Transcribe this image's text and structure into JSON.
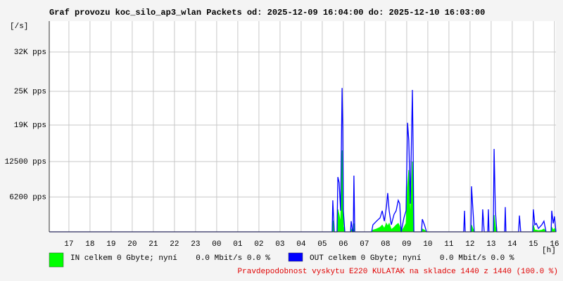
{
  "chart_data": {
    "type": "area-line",
    "title": "Graf provozu koc_silo_ap3_wlan Packets od: 2025-12-09 16:04:00 do: 2025-12-10 16:03:00",
    "y_label": "[/s]",
    "x_label": "[h]",
    "footer": "Pravdepodobnost vyskytu E220 KULATAK na skladce 1440 z 1440 (100.0 %)",
    "grid": true,
    "xlim": [
      0,
      24
    ],
    "ylim": [
      0,
      37500
    ],
    "yticks": [
      {
        "value": 6200,
        "label": "6200 pps"
      },
      {
        "value": 12500,
        "label": "12500 pps"
      },
      {
        "value": 19000,
        "label": "19K pps"
      },
      {
        "value": 25000,
        "label": "25K pps"
      },
      {
        "value": 32000,
        "label": "32K pps"
      }
    ],
    "xticks": [
      {
        "value": 0.93,
        "label": "17"
      },
      {
        "value": 1.93,
        "label": "18"
      },
      {
        "value": 2.93,
        "label": "19"
      },
      {
        "value": 3.93,
        "label": "20"
      },
      {
        "value": 4.93,
        "label": "21"
      },
      {
        "value": 5.93,
        "label": "22"
      },
      {
        "value": 6.93,
        "label": "23"
      },
      {
        "value": 7.93,
        "label": "00"
      },
      {
        "value": 8.93,
        "label": "01"
      },
      {
        "value": 9.93,
        "label": "02"
      },
      {
        "value": 10.93,
        "label": "03"
      },
      {
        "value": 11.93,
        "label": "04"
      },
      {
        "value": 12.93,
        "label": "05"
      },
      {
        "value": 13.93,
        "label": "06"
      },
      {
        "value": 14.93,
        "label": "07"
      },
      {
        "value": 15.93,
        "label": "08"
      },
      {
        "value": 16.93,
        "label": "09"
      },
      {
        "value": 17.93,
        "label": "10"
      },
      {
        "value": 18.93,
        "label": "11"
      },
      {
        "value": 19.93,
        "label": "12"
      },
      {
        "value": 20.93,
        "label": "13"
      },
      {
        "value": 21.93,
        "label": "14"
      },
      {
        "value": 22.93,
        "label": "15"
      },
      {
        "value": 23.93,
        "label": "16"
      }
    ],
    "x": [
      0,
      13.4,
      13.43,
      13.5,
      13.63,
      13.67,
      13.73,
      13.8,
      13.87,
      13.9,
      13.93,
      14.0,
      14.27,
      14.3,
      14.37,
      14.4,
      14.43,
      14.47,
      15.27,
      15.33,
      15.5,
      15.67,
      15.77,
      15.87,
      15.97,
      16.03,
      16.1,
      16.2,
      16.33,
      16.43,
      16.53,
      16.6,
      16.67,
      16.8,
      16.9,
      16.97,
      17.03,
      17.1,
      17.2,
      17.23,
      17.27,
      17.63,
      17.67,
      17.77,
      17.87,
      19.63,
      19.67,
      19.7,
      19.97,
      20.0,
      20.07,
      20.13,
      20.5,
      20.53,
      20.6,
      20.77,
      20.8,
      20.83,
      21.03,
      21.07,
      21.13,
      21.2,
      21.57,
      21.6,
      21.63,
      22.23,
      22.27,
      22.33,
      22.9,
      22.93,
      23.0,
      23.07,
      23.17,
      23.33,
      23.43,
      23.53,
      23.77,
      23.8,
      23.87,
      23.93,
      24.0
    ],
    "series": [
      {
        "name": "IN celkem 0 Gbyte; nyní    0.0 Mbit/s 0.0 %",
        "color": "#00ff00",
        "kind": "area",
        "values": [
          0,
          0,
          2000,
          0,
          0,
          4000,
          3000,
          1500,
          14500,
          9000,
          1000,
          0,
          0,
          500,
          0,
          0,
          1500,
          0,
          0,
          300,
          500,
          800,
          1200,
          600,
          1500,
          1000,
          1500,
          400,
          800,
          1200,
          1500,
          1000,
          0,
          800,
          1500,
          8000,
          11000,
          2000,
          12500,
          7000,
          0,
          0,
          500,
          300,
          0,
          0,
          0,
          0,
          0,
          1200,
          500,
          0,
          0,
          0,
          0,
          0,
          0,
          0,
          0,
          3000,
          1000,
          0,
          0,
          0,
          0,
          0,
          0,
          0,
          0,
          1200,
          300,
          300,
          200,
          300,
          500,
          0,
          0,
          800,
          300,
          600,
          0
        ]
      },
      {
        "name": "OUT celkem 0 Gbyte; nyní    0.0 Mbit/s 0.0 %",
        "color": "#0000ff",
        "kind": "line",
        "values": [
          0,
          0,
          5600,
          0,
          0,
          9750,
          8750,
          3750,
          25600,
          18750,
          3750,
          0,
          0,
          1900,
          0,
          0,
          10000,
          0,
          0,
          1250,
          1900,
          2500,
          3750,
          1900,
          4400,
          6900,
          3750,
          1250,
          3100,
          3750,
          5600,
          5000,
          0,
          2500,
          3750,
          19400,
          16250,
          5000,
          25250,
          16250,
          0,
          0,
          2250,
          1250,
          0,
          0,
          3750,
          0,
          0,
          8100,
          3750,
          0,
          0,
          4000,
          0,
          0,
          4000,
          0,
          0,
          14750,
          3750,
          0,
          0,
          4400,
          0,
          0,
          2900,
          0,
          0,
          4000,
          1250,
          1500,
          600,
          1250,
          1900,
          0,
          0,
          3750,
          1500,
          2750,
          0
        ]
      }
    ]
  }
}
